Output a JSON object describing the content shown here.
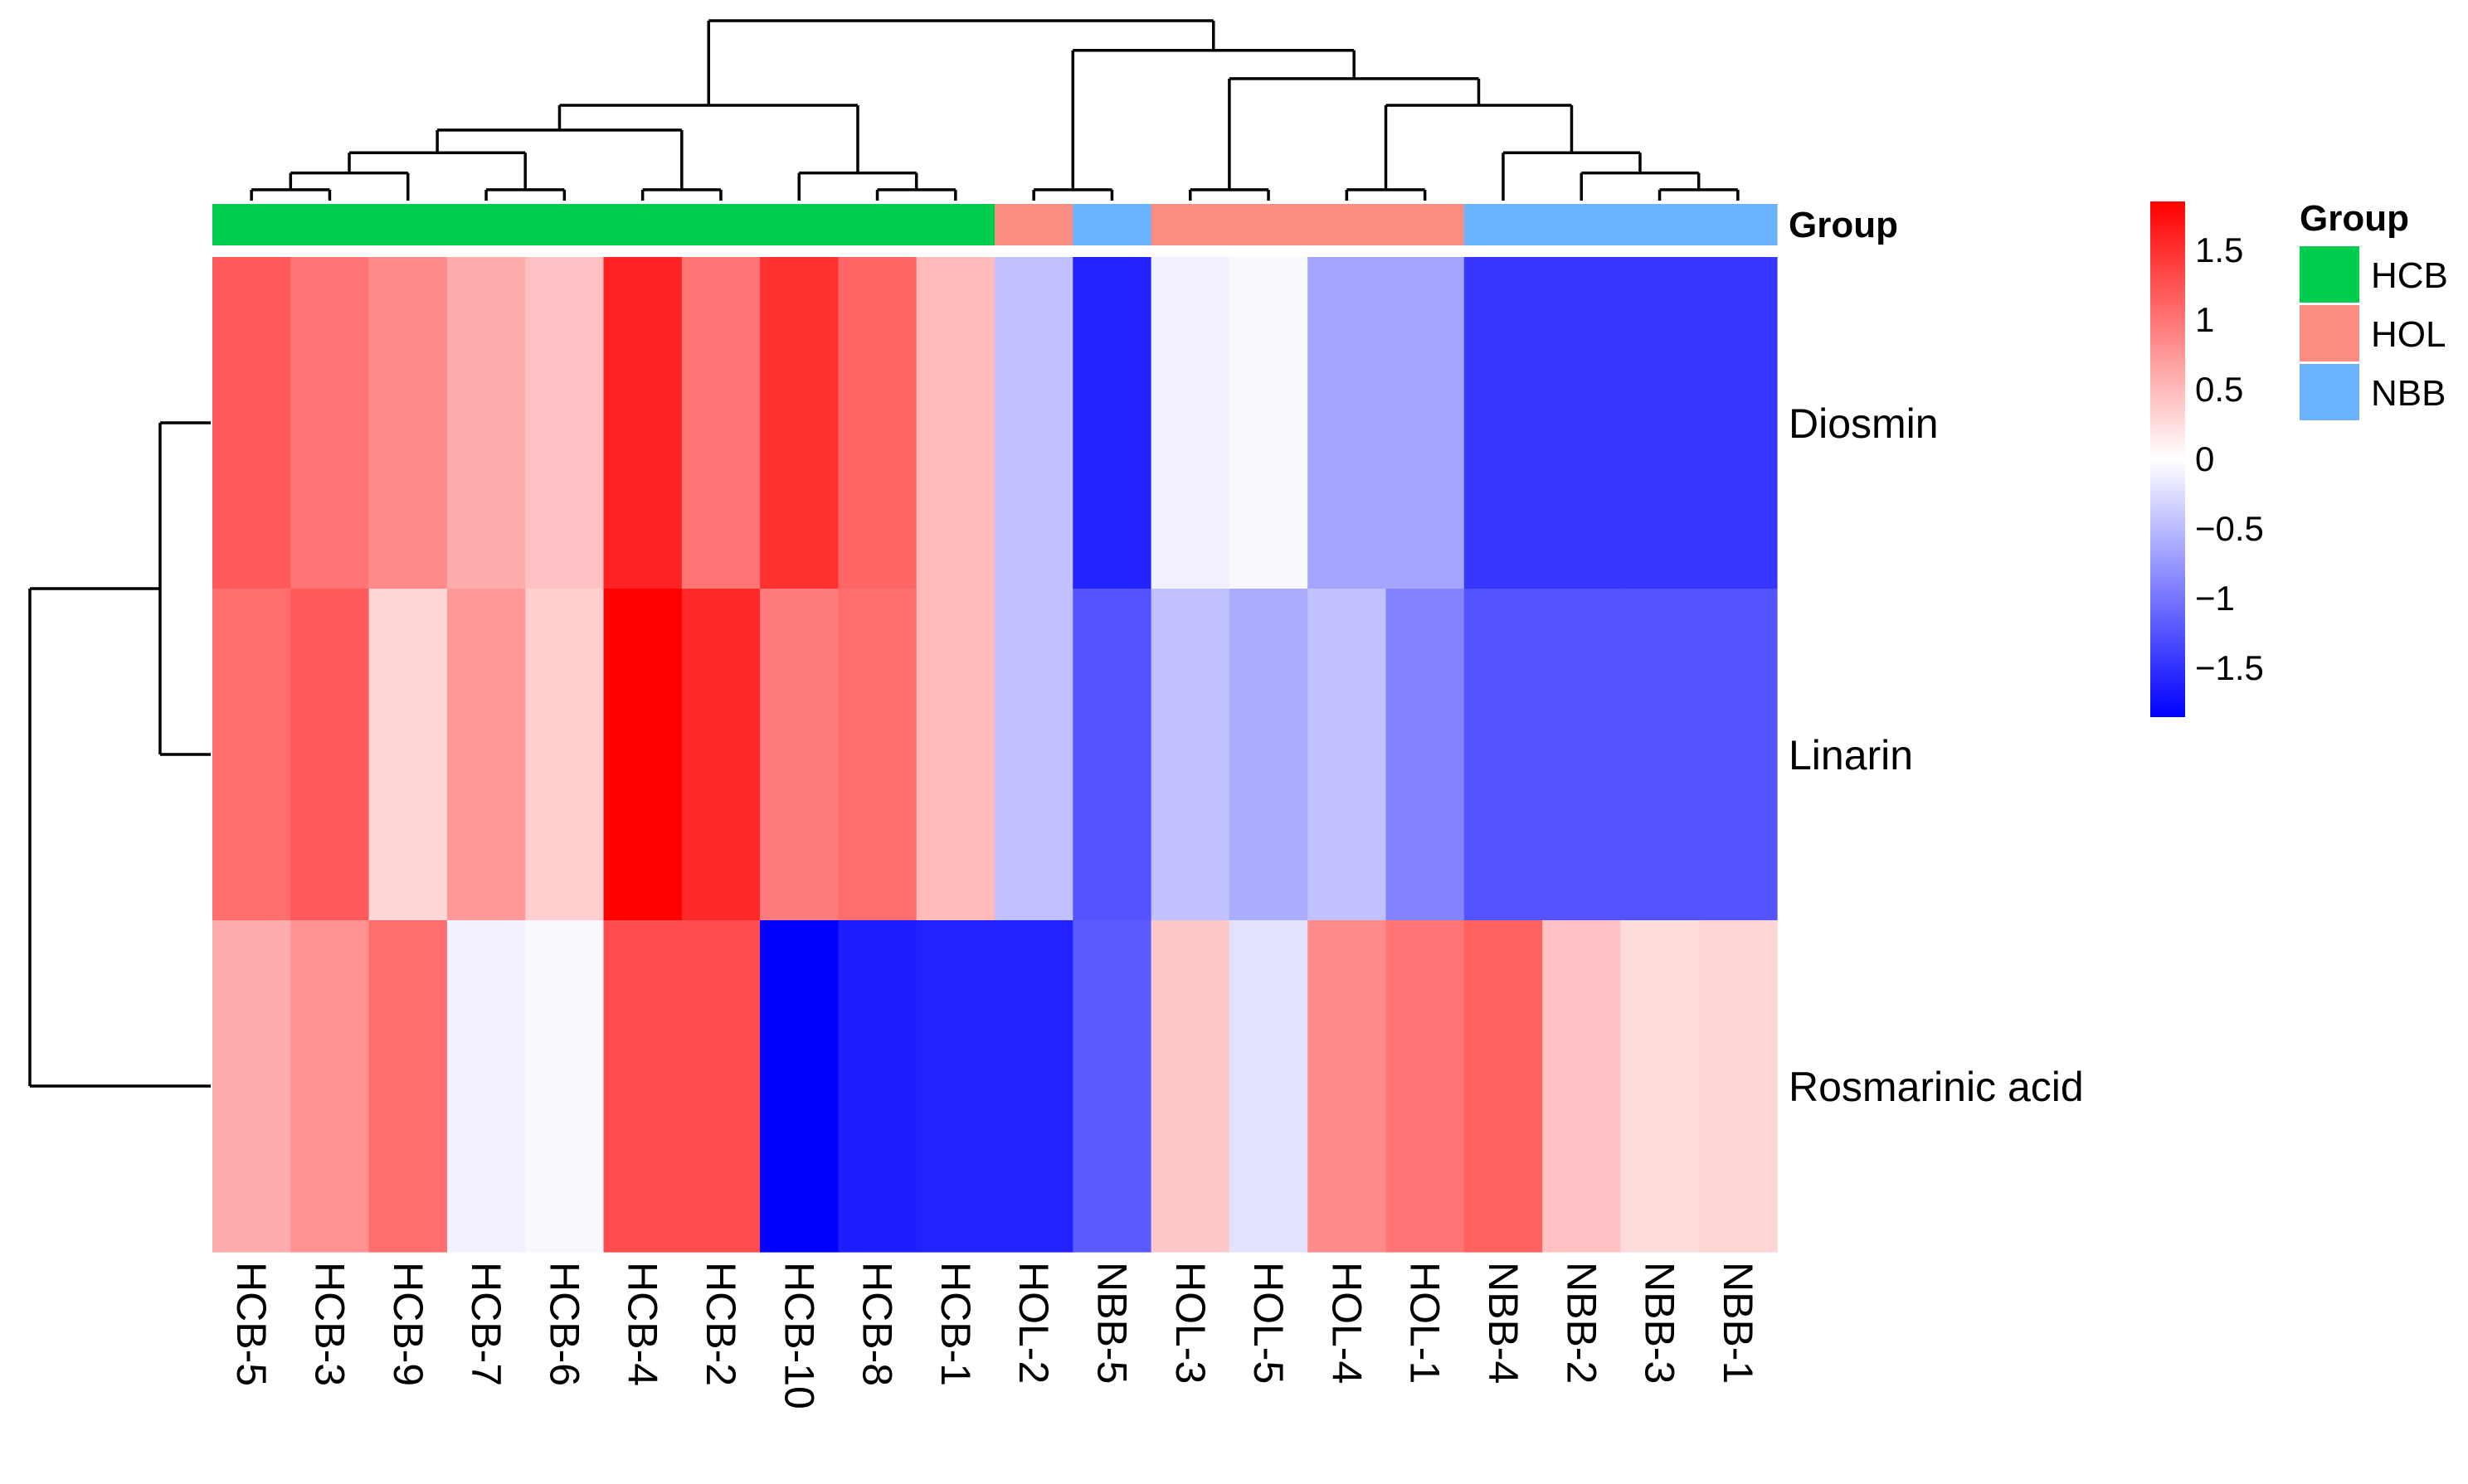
{
  "chart_data": {
    "type": "heatmap",
    "title": "",
    "rows": [
      "Diosmin",
      "Linarin",
      "Rosmarinic acid"
    ],
    "columns": [
      "HCB-5",
      "HCB-3",
      "HCB-9",
      "HCB-7",
      "HCB-6",
      "HCB-4",
      "HCB-2",
      "HCB-10",
      "HCB-8",
      "HCB-1",
      "HOL-2",
      "NBB-5",
      "HOL-3",
      "HOL-5",
      "HOL-4",
      "HOL-1",
      "NBB-4",
      "NBB-2",
      "NBB-3",
      "NBB-1"
    ],
    "column_groups": [
      "HCB",
      "HCB",
      "HCB",
      "HCB",
      "HCB",
      "HCB",
      "HCB",
      "HCB",
      "HCB",
      "HCB",
      "HOL",
      "NBB",
      "HOL",
      "HOL",
      "HOL",
      "HOL",
      "NBB",
      "NBB",
      "NBB",
      "NBB"
    ],
    "values": [
      [
        1.2,
        1.0,
        0.85,
        0.6,
        0.45,
        1.6,
        1.0,
        1.5,
        1.1,
        0.5,
        -0.45,
        -1.6,
        -0.1,
        -0.05,
        -0.65,
        -0.65,
        -1.45,
        -1.45,
        -1.45,
        -1.45
      ],
      [
        1.05,
        1.2,
        0.3,
        0.75,
        0.35,
        1.85,
        1.55,
        0.95,
        1.05,
        0.5,
        -0.45,
        -1.25,
        -0.45,
        -0.6,
        -0.45,
        -0.9,
        -1.25,
        -1.25,
        -1.25,
        -1.25
      ],
      [
        0.6,
        0.8,
        1.05,
        -0.1,
        -0.05,
        1.3,
        1.3,
        -1.85,
        -1.65,
        -1.6,
        -1.6,
        -1.2,
        0.4,
        -0.2,
        0.85,
        1.0,
        1.15,
        0.45,
        0.25,
        0.3
      ]
    ],
    "group_row_label": "Group",
    "color_scale": {
      "min": -1.85,
      "max": 1.85,
      "low_color": "#0000ff",
      "mid_color": "#ffffff",
      "high_color": "#ff0000",
      "ticks": [
        1.5,
        1,
        0.5,
        0,
        -0.5,
        -1,
        -1.5
      ],
      "tick_labels": [
        "1.5",
        "1",
        "0.5",
        "0",
        "−0.5",
        "−1",
        "−1.5"
      ]
    },
    "legend": {
      "title": "Group",
      "placement": "right",
      "items": [
        {
          "label": "HCB",
          "color": "#00cc4d"
        },
        {
          "label": "HOL",
          "color": "#fa8c82"
        },
        {
          "label": "NBB",
          "color": "#6ab4ff"
        }
      ]
    },
    "row_dendrogram": {
      "merges": [
        {
          "a": "Diosmin",
          "b": "Linarin",
          "height": 0.28
        },
        {
          "a": "Diosmin+Linarin",
          "b": "Rosmarinic acid",
          "height": 1.0
        }
      ]
    },
    "column_dendrogram": {
      "tree": [
        [
          [
            [
              [
                [
                  "HCB-5",
                  "HCB-3"
                ],
                "HCB-9"
              ],
              [
                "HCB-7",
                "HCB-6"
              ]
            ],
            [
              "HCB-4",
              "HCB-2"
            ]
          ],
          [
            [
              "HCB-10",
              [
                "HCB-8",
                "HCB-1"
              ]
            ]
          ]
        ],
        [
          [
            "HOL-2",
            "NBB-5"
          ],
          [
            [
              "HOL-3",
              "HOL-5"
            ],
            [
              [
                "HOL-4",
                "HOL-1"
              ],
              [
                [
                  "NBB-4",
                  [
                    "NBB-2",
                    [
                      "NBB-3",
                      "NBB-1"
                    ]
                  ]
                ]
              ]
            ]
          ]
        ]
      ],
      "heights": {
        "root": 1.0
      }
    }
  }
}
